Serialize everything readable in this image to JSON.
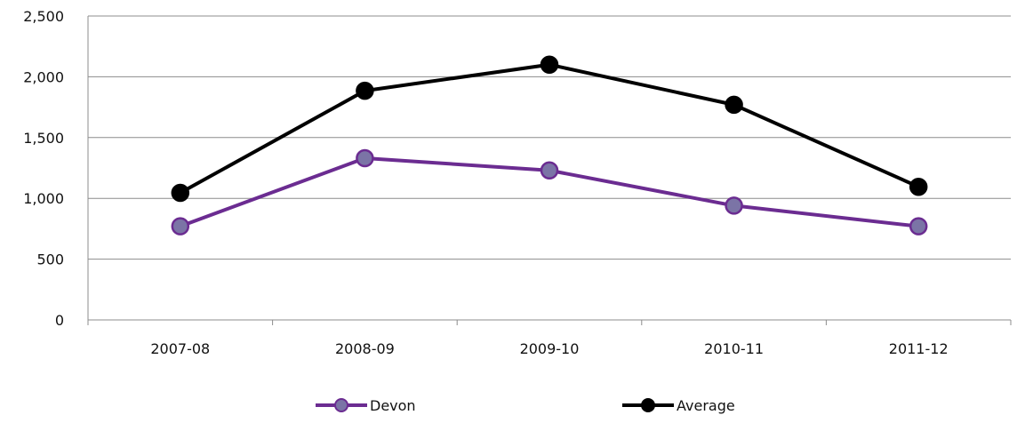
{
  "chart_data": {
    "type": "line",
    "title": "",
    "xlabel": "",
    "ylabel": "",
    "categories": [
      "2007-08",
      "2008-09",
      "2009-10",
      "2010-11",
      "2011-12"
    ],
    "ylim": [
      0,
      2500
    ],
    "yticks": [
      0,
      500,
      1000,
      1500,
      2000,
      2500
    ],
    "ytick_labels": [
      "0",
      "500",
      "1,000",
      "1,500",
      "2,000",
      "2,500"
    ],
    "grid": true,
    "legend_position": "bottom",
    "series": [
      {
        "name": "Devon",
        "values": [
          770,
          1330,
          1230,
          940,
          770
        ],
        "line_color": "#6B2C91",
        "marker_fill": "#7B74A6"
      },
      {
        "name": "Average",
        "values": [
          1045,
          1885,
          2100,
          1770,
          1095
        ],
        "line_color": "#000000",
        "marker_fill": "#000000"
      }
    ]
  }
}
